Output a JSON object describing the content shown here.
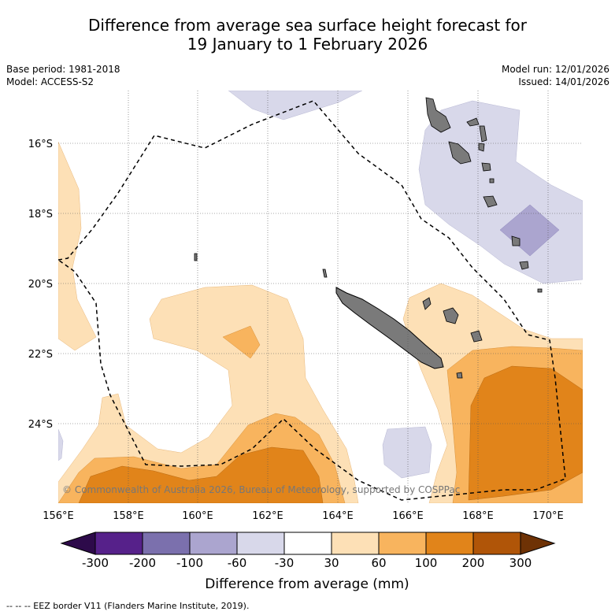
{
  "title": {
    "line1": "Difference from average sea surface height forecast for",
    "line2": "19 January to 1 February 2026"
  },
  "meta": {
    "base_period": "Base period: 1981-2018",
    "model": "Model: ACCESS-S2",
    "model_run": "Model run: 12/01/2026",
    "issued": "Issued: 14/01/2026"
  },
  "map": {
    "lat_labels": [
      "16°S",
      "18°S",
      "20°S",
      "22°S",
      "24°S"
    ],
    "lon_labels": [
      "156°E",
      "158°E",
      "160°E",
      "162°E",
      "164°E",
      "166°E",
      "168°E",
      "170°E"
    ],
    "copyright": "© Commonwealth of Australia 2026, Bureau of Meteorology, supported by COSPPac"
  },
  "colorbar": {
    "label": "Difference from average (mm)",
    "ticks": [
      "-300",
      "-200",
      "-100",
      "-60",
      "-30",
      "30",
      "60",
      "100",
      "200",
      "300"
    ],
    "colors": {
      "below_min": "#2d0a4a",
      "c1": "#56218a",
      "c2": "#7b70ad",
      "c3": "#aba5cf",
      "c4": "#d8d8ea",
      "c5": "#ffffff",
      "c6": "#fde0b6",
      "c7": "#f8b45e",
      "c8": "#e1841a",
      "c9": "#b05508",
      "above_max": "#6e3205"
    }
  },
  "footer": "-- -- -- EEZ border V11 (Flanders Marine Institute, 2019)."
}
